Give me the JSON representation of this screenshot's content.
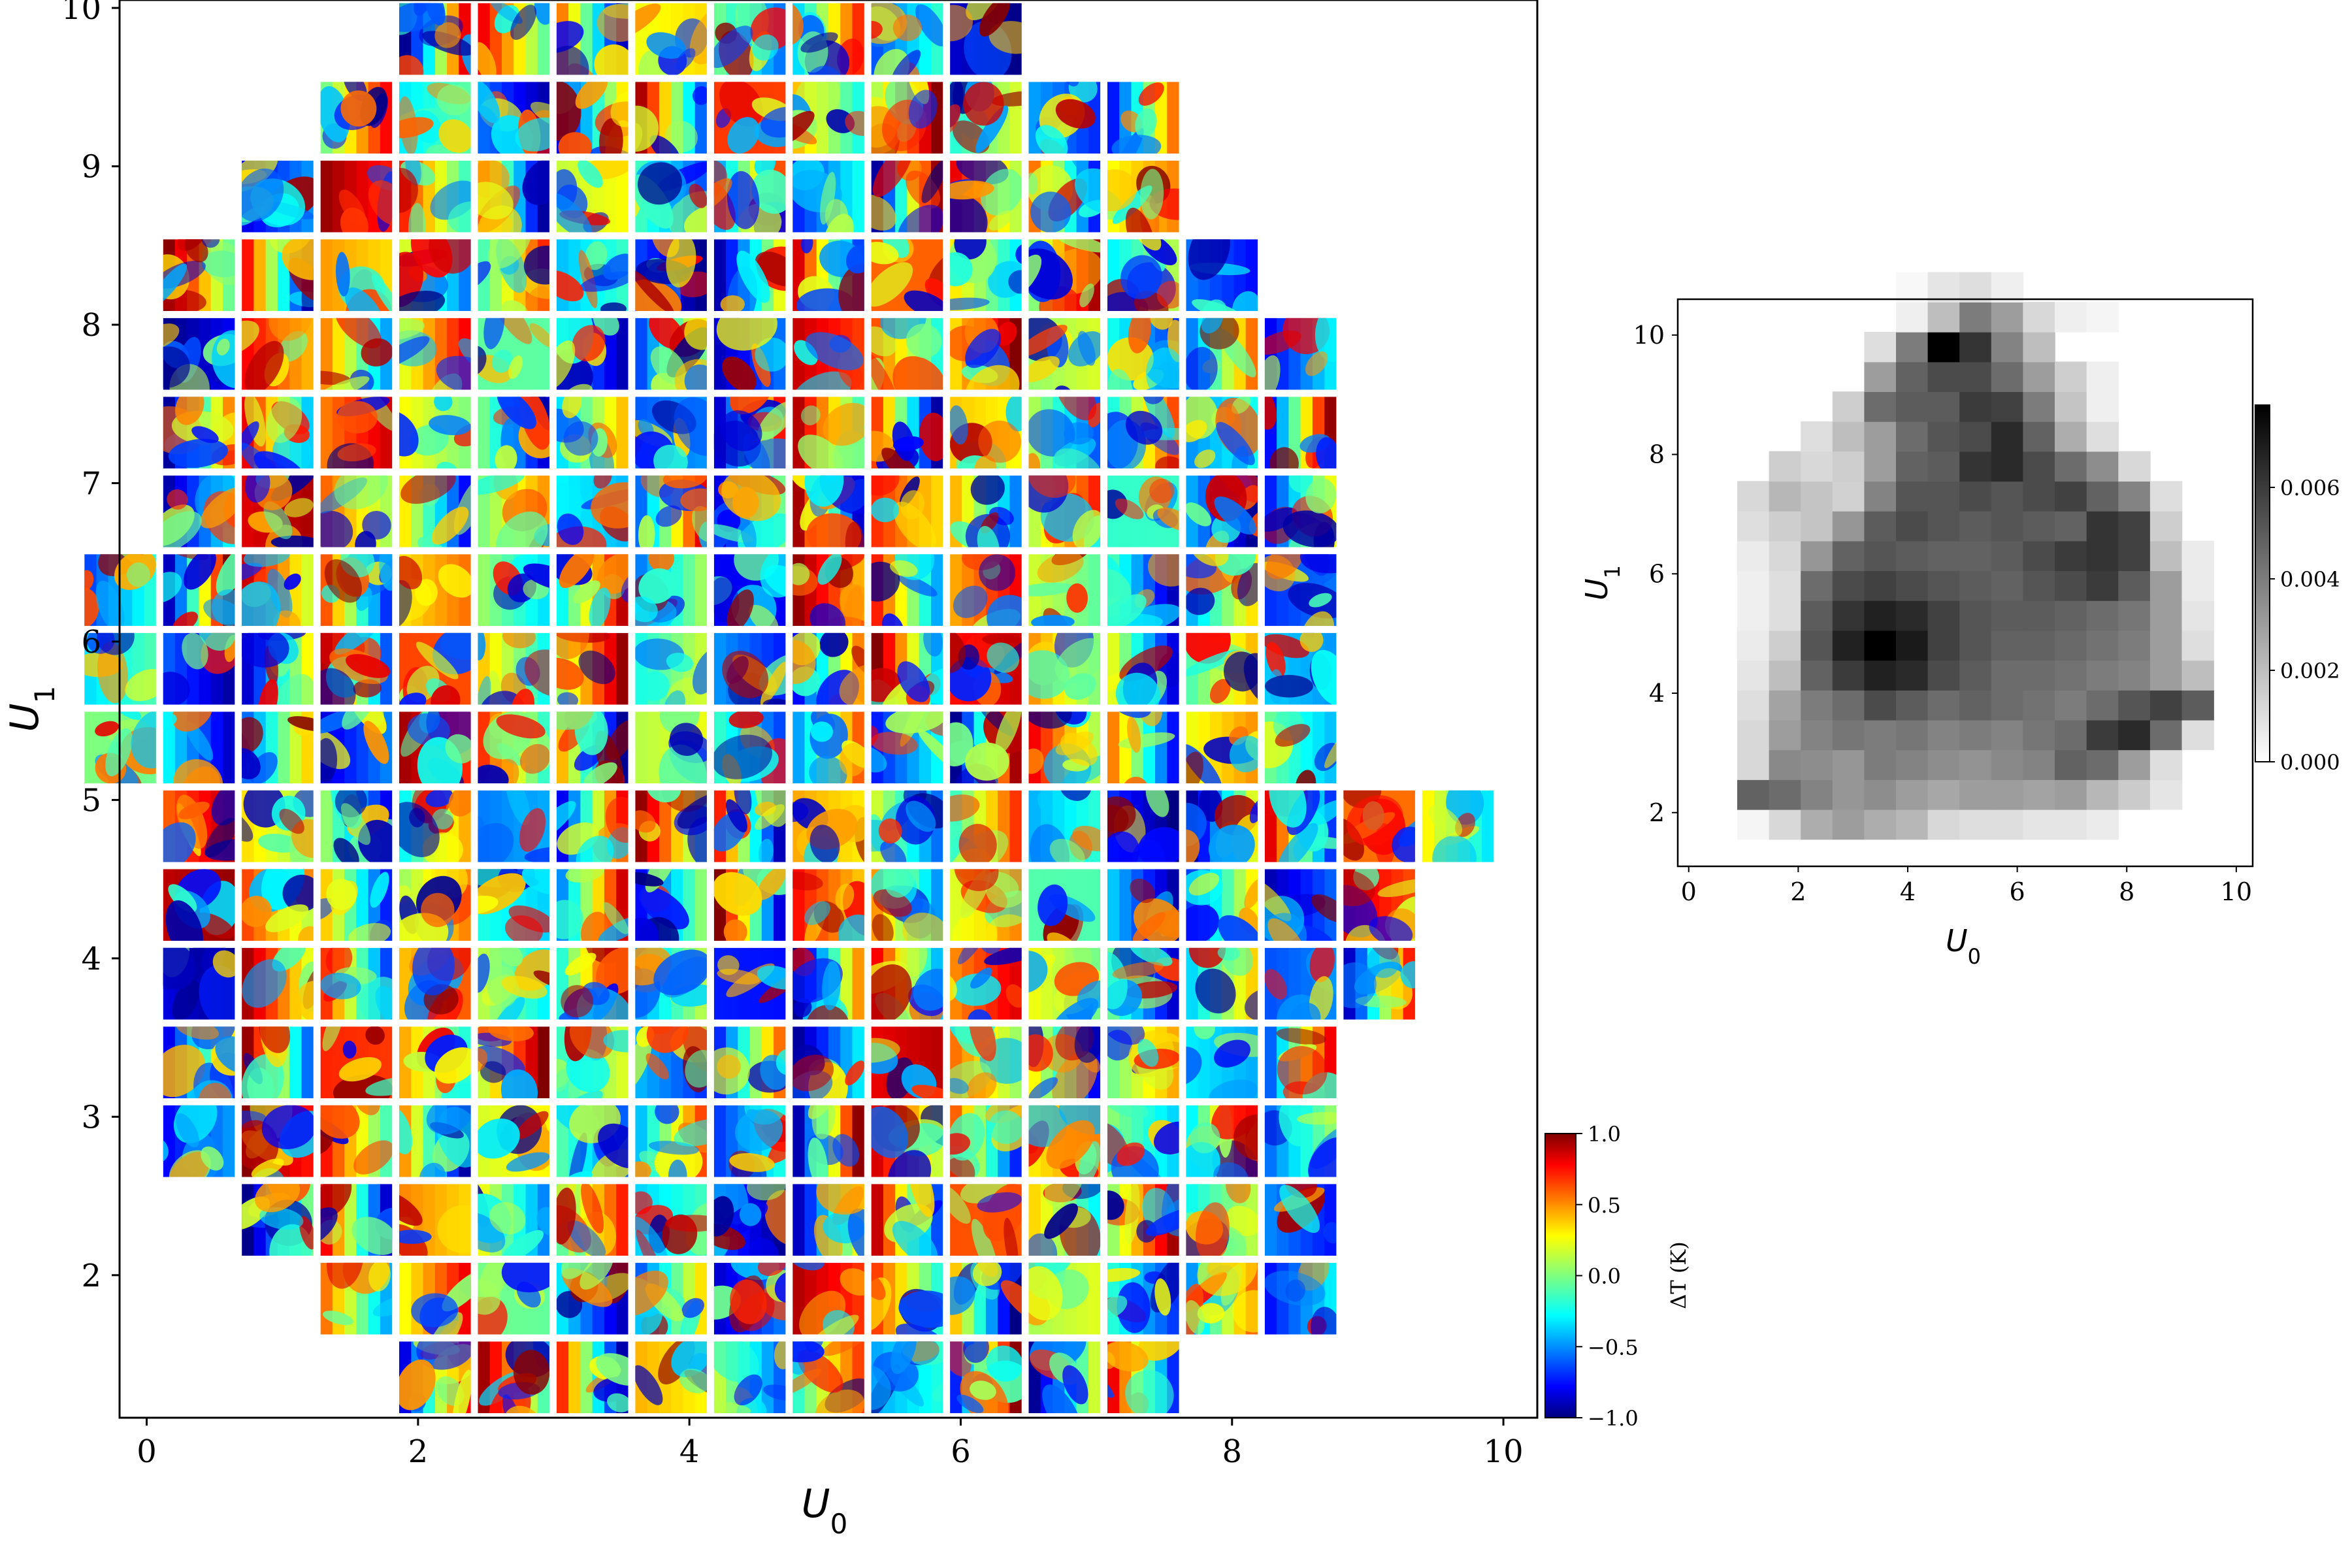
{
  "chart_data": [
    {
      "type": "image-grid",
      "xlabel": "U",
      "xlabel_sub": "0",
      "ylabel": "U",
      "ylabel_sub": "1",
      "xlim": [
        -0.2,
        10.25
      ],
      "ylim": [
        1.1,
        10.05
      ],
      "xticks": [
        0,
        2,
        4,
        6,
        8,
        10
      ],
      "yticks": [
        2,
        3,
        4,
        5,
        6,
        7,
        8,
        9,
        10
      ],
      "tile_grid": {
        "x_start": 0.385,
        "x_step": 0.58,
        "y_start": 1.355,
        "y_step": 0.497,
        "rows": [
          [
            3,
            10
          ],
          [
            2,
            13
          ],
          [
            1,
            14
          ],
          [
            0,
            15
          ],
          [
            0,
            15
          ],
          [
            0,
            16
          ],
          [
            0,
            16
          ],
          [
            0,
            17
          ],
          [
            -1,
            16
          ],
          [
            -1,
            16
          ],
          [
            -1,
            16
          ],
          [
            0,
            15
          ],
          [
            0,
            15
          ],
          [
            0,
            15
          ],
          [
            0,
            14
          ],
          [
            1,
            12
          ],
          [
            2,
            11
          ],
          [
            3,
            8
          ],
          [
            4,
            7
          ]
        ]
      },
      "colormap": "jet"
    },
    {
      "type": "heatmap",
      "xlabel": "U",
      "xlabel_sub": "0",
      "ylabel": "U",
      "ylabel_sub": "1",
      "xlim": [
        -0.2,
        10.3
      ],
      "ylim": [
        1.1,
        10.6
      ],
      "xticks": [
        0,
        2,
        4,
        6,
        8,
        10
      ],
      "yticks": [
        2,
        4,
        6,
        8,
        10
      ],
      "colormap": "gray_r",
      "cell_grid": {
        "x_start": 0.6,
        "x_step": 0.58,
        "y_start": 1.8,
        "y_step": 0.5,
        "rows": [
          [
            1,
            12,
            [
              0.0003,
              0.0012,
              0.0025,
              0.003,
              0.0025,
              0.0022,
              0.0012,
              0.001,
              0.001,
              0.0008,
              0.0008,
              0.0006
            ]
          ],
          [
            1,
            14,
            [
              0.0048,
              0.0045,
              0.0038,
              0.0032,
              0.0035,
              0.003,
              0.0027,
              0.003,
              0.003,
              0.0028,
              0.003,
              0.0022,
              0.0016,
              0.0008
            ]
          ],
          [
            1,
            14,
            [
              0.0012,
              0.0036,
              0.0035,
              0.0032,
              0.004,
              0.0038,
              0.0035,
              0.0033,
              0.0036,
              0.0038,
              0.0048,
              0.0045,
              0.003,
              0.001
            ]
          ],
          [
            1,
            15,
            [
              0.0012,
              0.003,
              0.0038,
              0.0042,
              0.004,
              0.0042,
              0.0038,
              0.004,
              0.0038,
              0.0042,
              0.0045,
              0.006,
              0.0065,
              0.0045,
              0.001
            ]
          ],
          [
            1,
            15,
            [
              0.001,
              0.0028,
              0.004,
              0.0045,
              0.0055,
              0.005,
              0.0045,
              0.0048,
              0.0045,
              0.0043,
              0.004,
              0.0045,
              0.0052,
              0.0058,
              0.005
            ]
          ],
          [
            1,
            15,
            [
              0.0008,
              0.002,
              0.0048,
              0.006,
              0.0068,
              0.0065,
              0.0055,
              0.005,
              0.0045,
              0.0045,
              0.0043,
              0.004,
              0.0038,
              0.003,
              0.002
            ]
          ],
          [
            1,
            15,
            [
              0.0006,
              0.0015,
              0.0052,
              0.0068,
              0.0078,
              0.007,
              0.0058,
              0.0052,
              0.0048,
              0.0048,
              0.0046,
              0.0043,
              0.004,
              0.003,
              0.001
            ]
          ],
          [
            1,
            15,
            [
              0.0005,
              0.001,
              0.005,
              0.0062,
              0.0068,
              0.0065,
              0.0058,
              0.0052,
              0.005,
              0.005,
              0.0048,
              0.0045,
              0.0042,
              0.003,
              0.0008
            ]
          ],
          [
            1,
            15,
            [
              0.0005,
              0.001,
              0.0045,
              0.0055,
              0.0058,
              0.0055,
              0.0052,
              0.005,
              0.0048,
              0.0052,
              0.0055,
              0.006,
              0.005,
              0.003,
              0.0006
            ]
          ],
          [
            1,
            15,
            [
              0.0006,
              0.0012,
              0.0032,
              0.0048,
              0.0052,
              0.005,
              0.0048,
              0.0048,
              0.005,
              0.0055,
              0.006,
              0.0062,
              0.0058,
              0.002,
              0.0006
            ]
          ],
          [
            1,
            14,
            [
              0.001,
              0.0015,
              0.0018,
              0.0032,
              0.005,
              0.0055,
              0.0052,
              0.005,
              0.0052,
              0.005,
              0.0048,
              0.0062,
              0.0058,
              0.0015
            ]
          ],
          [
            1,
            14,
            [
              0.0012,
              0.0022,
              0.0018,
              0.0014,
              0.0038,
              0.0052,
              0.0052,
              0.0055,
              0.0052,
              0.0055,
              0.0058,
              0.0048,
              0.0038,
              0.001
            ]
          ],
          [
            2,
            12,
            [
              0.0015,
              0.0012,
              0.0015,
              0.003,
              0.0048,
              0.005,
              0.0062,
              0.0065,
              0.0055,
              0.0045,
              0.0035,
              0.0012
            ]
          ],
          [
            3,
            10,
            [
              0.001,
              0.002,
              0.003,
              0.0045,
              0.0052,
              0.0055,
              0.0065,
              0.0048,
              0.0025,
              0.001
            ]
          ],
          [
            4,
            9,
            [
              0.0015,
              0.0045,
              0.005,
              0.005,
              0.006,
              0.0058,
              0.004,
              0.0018,
              0.0005
            ]
          ],
          [
            5,
            8,
            [
              0.003,
              0.0048,
              0.0055,
              0.0055,
              0.0045,
              0.003,
              0.0015,
              0.0005
            ]
          ],
          [
            5,
            6,
            [
              0.001,
              0.004,
              0.0078,
              0.0062,
              0.0038,
              0.002
            ]
          ],
          [
            6,
            7,
            [
              0.0005,
              0.002,
              0.004,
              0.003,
              0.0012,
              0.0005,
              0.0003
            ]
          ],
          [
            6,
            4,
            [
              0.0002,
              0.0008,
              0.001,
              0.0005
            ]
          ]
        ]
      }
    }
  ],
  "colorbar_main": {
    "label": "ΔT (K)",
    "ticks": [
      "1.0",
      "0.5",
      "0.0",
      "−0.5",
      "−1.0"
    ],
    "range": [
      -1.0,
      1.0
    ],
    "colormap": "jet"
  },
  "colorbar_inset": {
    "ticks": [
      "0.006",
      "0.004",
      "0.002",
      "0.000"
    ],
    "range": [
      0,
      0.0078
    ],
    "colormap": "gray_r"
  }
}
